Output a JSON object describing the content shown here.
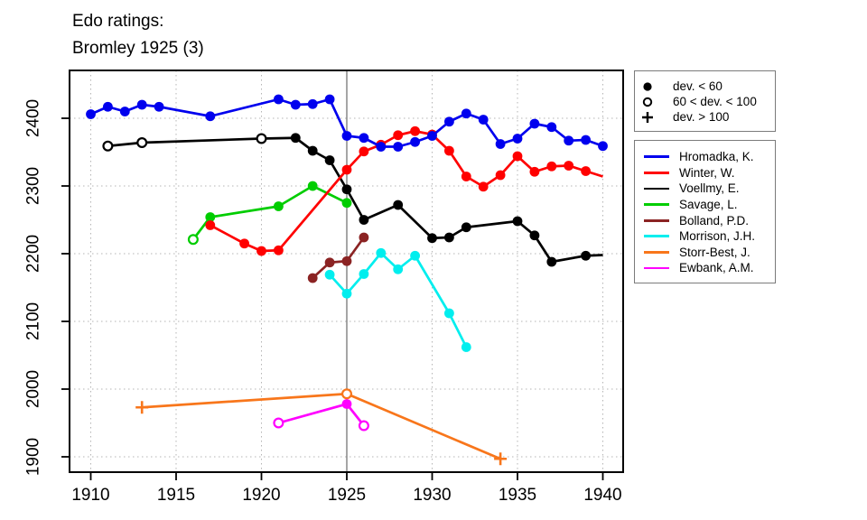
{
  "chart_data": {
    "type": "line",
    "title_lines": [
      "Edo ratings:",
      "Bromley 1925 (3)"
    ],
    "x_ticks": [
      1910,
      1915,
      1920,
      1925,
      1930,
      1935,
      1940
    ],
    "y_ticks": [
      1900,
      2000,
      2100,
      2200,
      2300,
      2400
    ],
    "x_range": [
      1908.8,
      1941.2
    ],
    "y_range": [
      1877,
      2471
    ],
    "grid": true,
    "reference_line_x": 1925,
    "legend_position": "right",
    "marker_legend": [
      {
        "marker": "filled-circle",
        "label": "dev. < 60"
      },
      {
        "marker": "open-circle",
        "label": "60 < dev. < 100"
      },
      {
        "marker": "plus",
        "label": "dev. > 100"
      }
    ],
    "series": [
      {
        "name": "Hromadka, K.",
        "color": "#0000ee",
        "points": [
          [
            1910,
            2406,
            "f"
          ],
          [
            1911,
            2417,
            "f"
          ],
          [
            1912,
            2410,
            "f"
          ],
          [
            1913,
            2420,
            "f"
          ],
          [
            1914,
            2417,
            "f"
          ],
          [
            1917,
            2403,
            "f"
          ],
          [
            1921,
            2428,
            "f"
          ],
          [
            1922,
            2420,
            "f"
          ],
          [
            1923,
            2421,
            "f"
          ],
          [
            1924,
            2428,
            "f"
          ],
          [
            1925,
            2374,
            "f"
          ],
          [
            1926,
            2371,
            "f"
          ],
          [
            1927,
            2358,
            "f"
          ],
          [
            1928,
            2358,
            "f"
          ],
          [
            1929,
            2365,
            "f"
          ],
          [
            1930,
            2374,
            "f"
          ],
          [
            1931,
            2395,
            "f"
          ],
          [
            1932,
            2407,
            "f"
          ],
          [
            1933,
            2398,
            "f"
          ],
          [
            1934,
            2362,
            "f"
          ],
          [
            1935,
            2370,
            "f"
          ],
          [
            1936,
            2392,
            "f"
          ],
          [
            1937,
            2387,
            "f"
          ],
          [
            1938,
            2367,
            "f"
          ],
          [
            1939,
            2368,
            "f"
          ],
          [
            1940,
            2359,
            "f"
          ]
        ]
      },
      {
        "name": "Winter, W.",
        "color": "#ff0000",
        "points": [
          [
            1917,
            2242,
            "f"
          ],
          [
            1919,
            2215,
            "f"
          ],
          [
            1920,
            2204,
            "f"
          ],
          [
            1921,
            2205,
            "f"
          ],
          [
            1925,
            2324,
            "f"
          ],
          [
            1926,
            2351,
            "f"
          ],
          [
            1927,
            2361,
            "f"
          ],
          [
            1928,
            2375,
            "f"
          ],
          [
            1929,
            2381,
            "f"
          ],
          [
            1930,
            2376,
            "f"
          ],
          [
            1931,
            2352,
            "f"
          ],
          [
            1932,
            2314,
            "f"
          ],
          [
            1933,
            2299,
            "f"
          ],
          [
            1934,
            2316,
            "f"
          ],
          [
            1935,
            2344,
            "f"
          ],
          [
            1936,
            2321,
            "f"
          ],
          [
            1937,
            2329,
            "f"
          ],
          [
            1938,
            2330,
            "f"
          ],
          [
            1939,
            2322,
            "f"
          ],
          [
            1940,
            2314,
            ""
          ]
        ]
      },
      {
        "name": "Voellmy, E.",
        "color": "#000000",
        "points": [
          [
            1911,
            2359,
            "o"
          ],
          [
            1913,
            2364,
            "o"
          ],
          [
            1920,
            2370,
            "o"
          ],
          [
            1922,
            2371,
            "f"
          ],
          [
            1923,
            2352,
            "f"
          ],
          [
            1924,
            2338,
            "f"
          ],
          [
            1925,
            2295,
            "f"
          ],
          [
            1926,
            2250,
            "f"
          ],
          [
            1928,
            2272,
            "f"
          ],
          [
            1930,
            2223,
            "f"
          ],
          [
            1931,
            2224,
            "f"
          ],
          [
            1932,
            2239,
            "f"
          ],
          [
            1935,
            2248,
            "f"
          ],
          [
            1936,
            2227,
            "f"
          ],
          [
            1937,
            2188,
            "f"
          ],
          [
            1939,
            2197,
            "f"
          ],
          [
            1940,
            2198,
            ""
          ]
        ]
      },
      {
        "name": "Savage, L.",
        "color": "#00cd00",
        "points": [
          [
            1916,
            2221,
            "o"
          ],
          [
            1917,
            2254,
            "f"
          ],
          [
            1921,
            2270,
            "f"
          ],
          [
            1923,
            2300,
            "f"
          ],
          [
            1925,
            2275,
            "f"
          ]
        ]
      },
      {
        "name": "Bolland, P.D.",
        "color": "#8b2323",
        "points": [
          [
            1923,
            2164,
            "f"
          ],
          [
            1924,
            2187,
            "f"
          ],
          [
            1925,
            2189,
            "f"
          ],
          [
            1926,
            2224,
            "f"
          ]
        ]
      },
      {
        "name": "Morrison, J.H.",
        "color": "#00eeee",
        "points": [
          [
            1924,
            2169,
            "f"
          ],
          [
            1925,
            2141,
            "f"
          ],
          [
            1926,
            2170,
            "f"
          ],
          [
            1927,
            2201,
            "f"
          ],
          [
            1928,
            2177,
            "f"
          ],
          [
            1929,
            2197,
            "f"
          ],
          [
            1931,
            2112,
            "f"
          ],
          [
            1932,
            2062,
            "f"
          ]
        ]
      },
      {
        "name": "Storr-Best, J.",
        "color": "#f8761b",
        "points": [
          [
            1913,
            1973,
            "+"
          ],
          [
            1925,
            1993,
            "o"
          ],
          [
            1934,
            1897,
            "+"
          ]
        ]
      },
      {
        "name": "Ewbank, A.M.",
        "color": "#ff00ff",
        "points": [
          [
            1921,
            1950,
            "o"
          ],
          [
            1925,
            1978,
            "f"
          ],
          [
            1926,
            1946,
            "o"
          ]
        ]
      }
    ]
  },
  "colors": {
    "grid": "#b4b4b4",
    "reference_line": "#7f7f7f",
    "axis": "#000000",
    "legend_border": "#7b7b7b",
    "background": "#ffffff"
  }
}
